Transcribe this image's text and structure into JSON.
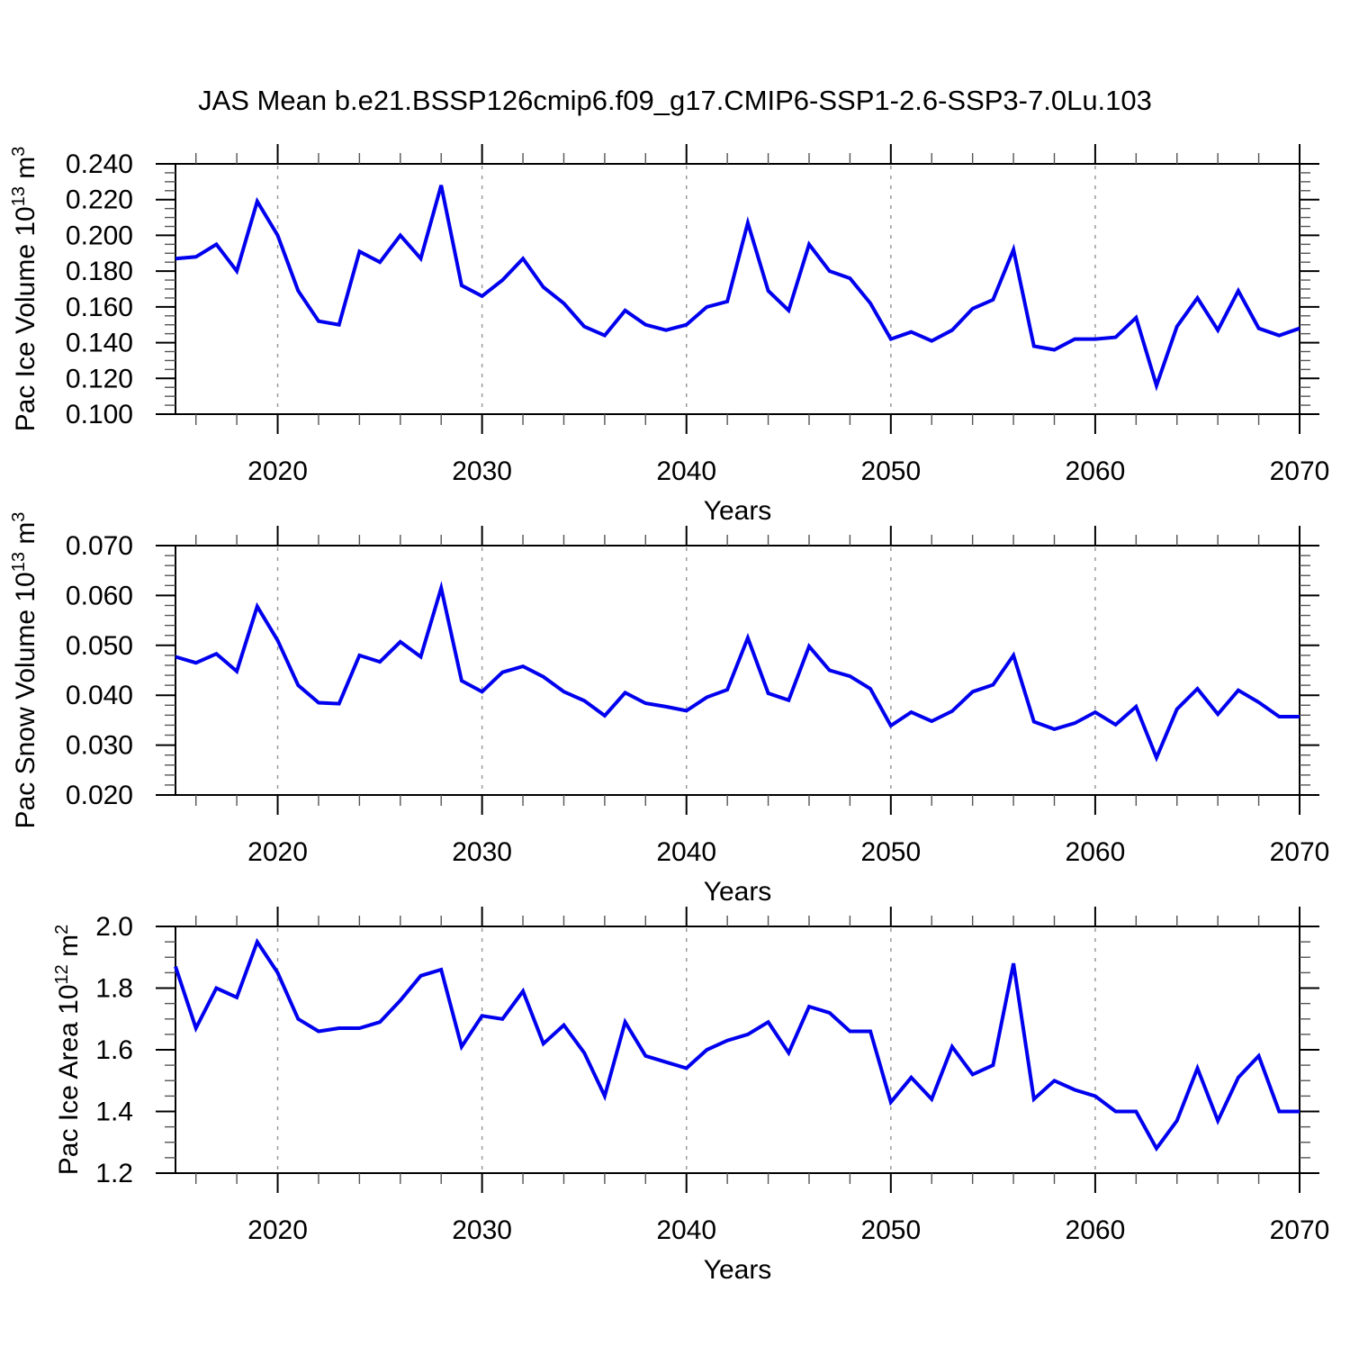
{
  "title": "JAS Mean b.e21.BSSP126cmip6.f09_g17.CMIP6-SSP1-2.6-SSP3-7.0Lu.103",
  "colors": {
    "line": "#0000EE",
    "grid": "#999999",
    "axis": "#000000",
    "minor_tick": "#555555",
    "text": "#000000",
    "background": "#ffffff"
  },
  "chart_data": [
    {
      "type": "line",
      "title": "",
      "xlabel": "Years",
      "ylabel": "Pac Ice Volume 10^13 m^3",
      "ylabel_parts": [
        [
          "Pac Ice Volume 10",
          0
        ],
        [
          "13",
          1
        ],
        [
          " m",
          0
        ],
        [
          "3",
          1
        ]
      ],
      "xlim": [
        2015,
        2070
      ],
      "ylim": [
        0.1,
        0.24
      ],
      "grid": "x-dashed",
      "legend": "none",
      "xticks": {
        "major": [
          2020,
          2030,
          2040,
          2050,
          2060,
          2070
        ],
        "labels": [
          "2020",
          "2030",
          "2040",
          "2050",
          "2060",
          "2070"
        ],
        "minor_step": 2
      },
      "yticks": {
        "major": [
          0.1,
          0.12,
          0.14,
          0.16,
          0.18,
          0.2,
          0.22,
          0.24
        ],
        "labels": [
          "0.100",
          "0.120",
          "0.140",
          "0.160",
          "0.180",
          "0.200",
          "0.220",
          "0.240"
        ],
        "minor_step": 0.005
      },
      "grid_x": [
        2020,
        2030,
        2040,
        2050,
        2060
      ],
      "x": [
        2015,
        2016,
        2017,
        2018,
        2019,
        2020,
        2021,
        2022,
        2023,
        2024,
        2025,
        2026,
        2027,
        2028,
        2029,
        2030,
        2031,
        2032,
        2033,
        2034,
        2035,
        2036,
        2037,
        2038,
        2039,
        2040,
        2041,
        2042,
        2043,
        2044,
        2045,
        2046,
        2047,
        2048,
        2049,
        2050,
        2051,
        2052,
        2053,
        2054,
        2055,
        2056,
        2057,
        2058,
        2059,
        2060,
        2061,
        2062,
        2063,
        2064,
        2065,
        2066,
        2067,
        2068,
        2069,
        2070
      ],
      "values": [
        0.187,
        0.188,
        0.195,
        0.18,
        0.219,
        0.2,
        0.169,
        0.152,
        0.15,
        0.191,
        0.185,
        0.2,
        0.187,
        0.228,
        0.172,
        0.166,
        0.175,
        0.187,
        0.171,
        0.162,
        0.149,
        0.144,
        0.158,
        0.15,
        0.147,
        0.15,
        0.16,
        0.163,
        0.207,
        0.169,
        0.158,
        0.195,
        0.18,
        0.176,
        0.162,
        0.142,
        0.146,
        0.141,
        0.147,
        0.159,
        0.164,
        0.192,
        0.138,
        0.136,
        0.142,
        0.142,
        0.143,
        0.154,
        0.116,
        0.149,
        0.165,
        0.147,
        0.169,
        0.148,
        0.144,
        0.148
      ]
    },
    {
      "type": "line",
      "title": "",
      "xlabel": "Years",
      "ylabel": "Pac Snow Volume 10^13 m^3",
      "ylabel_parts": [
        [
          "Pac Snow Volume 10",
          0
        ],
        [
          "13",
          1
        ],
        [
          " m",
          0
        ],
        [
          "3",
          1
        ]
      ],
      "xlim": [
        2015,
        2070
      ],
      "ylim": [
        0.02,
        0.07
      ],
      "grid": "x-dashed",
      "legend": "none",
      "xticks": {
        "major": [
          2020,
          2030,
          2040,
          2050,
          2060,
          2070
        ],
        "labels": [
          "2020",
          "2030",
          "2040",
          "2050",
          "2060",
          "2070"
        ],
        "minor_step": 2
      },
      "yticks": {
        "major": [
          0.02,
          0.03,
          0.04,
          0.05,
          0.06,
          0.07
        ],
        "labels": [
          "0.020",
          "0.030",
          "0.040",
          "0.050",
          "0.060",
          "0.070"
        ],
        "minor_step": 0.002
      },
      "grid_x": [
        2020,
        2030,
        2040,
        2050,
        2060
      ],
      "x": [
        2015,
        2016,
        2017,
        2018,
        2019,
        2020,
        2021,
        2022,
        2023,
        2024,
        2025,
        2026,
        2027,
        2028,
        2029,
        2030,
        2031,
        2032,
        2033,
        2034,
        2035,
        2036,
        2037,
        2038,
        2039,
        2040,
        2041,
        2042,
        2043,
        2044,
        2045,
        2046,
        2047,
        2048,
        2049,
        2050,
        2051,
        2052,
        2053,
        2054,
        2055,
        2056,
        2057,
        2058,
        2059,
        2060,
        2061,
        2062,
        2063,
        2064,
        2065,
        2066,
        2067,
        2068,
        2069,
        2070
      ],
      "values": [
        0.0477,
        0.0465,
        0.0483,
        0.0448,
        0.0578,
        0.051,
        0.042,
        0.0385,
        0.0383,
        0.048,
        0.0467,
        0.0507,
        0.0477,
        0.0615,
        0.0429,
        0.0407,
        0.0446,
        0.0458,
        0.0437,
        0.0407,
        0.0389,
        0.0359,
        0.0405,
        0.0384,
        0.0377,
        0.0369,
        0.0396,
        0.0411,
        0.0515,
        0.0404,
        0.039,
        0.0498,
        0.045,
        0.0438,
        0.0413,
        0.0339,
        0.0366,
        0.0348,
        0.0368,
        0.0407,
        0.0421,
        0.048,
        0.0347,
        0.0332,
        0.0344,
        0.0366,
        0.0341,
        0.0377,
        0.0275,
        0.0372,
        0.0413,
        0.0362,
        0.041,
        0.0386,
        0.0357,
        0.0357
      ]
    },
    {
      "type": "line",
      "title": "",
      "xlabel": "Years",
      "ylabel": "Pac Ice Area 10^12 m^2",
      "ylabel_parts": [
        [
          "Pac Ice Area 10",
          0
        ],
        [
          "12",
          1
        ],
        [
          " m",
          0
        ],
        [
          "2",
          1
        ]
      ],
      "xlim": [
        2015,
        2070
      ],
      "ylim": [
        1.2,
        2.0
      ],
      "grid": "x-dashed",
      "legend": "none",
      "xticks": {
        "major": [
          2020,
          2030,
          2040,
          2050,
          2060,
          2070
        ],
        "labels": [
          "2020",
          "2030",
          "2040",
          "2050",
          "2060",
          "2070"
        ],
        "minor_step": 2
      },
      "yticks": {
        "major": [
          1.2,
          1.4,
          1.6,
          1.8,
          2.0
        ],
        "labels": [
          "1.2",
          "1.4",
          "1.6",
          "1.8",
          "2.0"
        ],
        "minor_step": 0.05
      },
      "grid_x": [
        2020,
        2030,
        2040,
        2050,
        2060
      ],
      "x": [
        2015,
        2016,
        2017,
        2018,
        2019,
        2020,
        2021,
        2022,
        2023,
        2024,
        2025,
        2026,
        2027,
        2028,
        2029,
        2030,
        2031,
        2032,
        2033,
        2034,
        2035,
        2036,
        2037,
        2038,
        2039,
        2040,
        2041,
        2042,
        2043,
        2044,
        2045,
        2046,
        2047,
        2048,
        2049,
        2050,
        2051,
        2052,
        2053,
        2054,
        2055,
        2056,
        2057,
        2058,
        2059,
        2060,
        2061,
        2062,
        2063,
        2064,
        2065,
        2066,
        2067,
        2068,
        2069,
        2070
      ],
      "values": [
        1.87,
        1.67,
        1.8,
        1.77,
        1.95,
        1.85,
        1.7,
        1.66,
        1.67,
        1.67,
        1.69,
        1.76,
        1.84,
        1.86,
        1.61,
        1.71,
        1.7,
        1.79,
        1.62,
        1.68,
        1.59,
        1.45,
        1.69,
        1.58,
        1.56,
        1.54,
        1.6,
        1.63,
        1.65,
        1.69,
        1.59,
        1.74,
        1.72,
        1.66,
        1.66,
        1.43,
        1.51,
        1.44,
        1.61,
        1.52,
        1.55,
        1.88,
        1.44,
        1.5,
        1.47,
        1.45,
        1.4,
        1.4,
        1.28,
        1.37,
        1.54,
        1.37,
        1.51,
        1.58,
        1.4,
        1.4
      ]
    }
  ]
}
